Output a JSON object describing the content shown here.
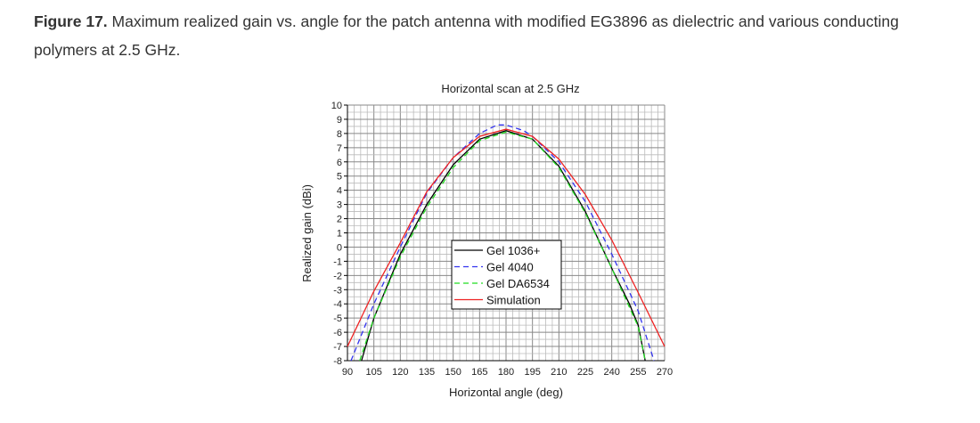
{
  "caption": {
    "label": "Figure 17.",
    "text": " Maximum realized gain vs. angle for the patch antenna with modified EG3896 as dielectric and various conducting polymers at 2.5 GHz."
  },
  "chart_data": {
    "type": "line",
    "title": "Horizontal scan at 2.5 GHz",
    "xlabel": "Horizontal angle (deg)",
    "ylabel": "Realized gain (dBi)",
    "xlim": [
      90,
      270
    ],
    "ylim": [
      -8,
      10
    ],
    "xticks": [
      90,
      105,
      120,
      135,
      150,
      165,
      180,
      195,
      210,
      225,
      240,
      255,
      270
    ],
    "yticks": [
      -8,
      -7,
      -6,
      -5,
      -4,
      -3,
      -2,
      -1,
      0,
      1,
      2,
      3,
      4,
      5,
      6,
      7,
      8,
      9,
      10
    ],
    "grid": true,
    "legend_position": "center",
    "series": [
      {
        "name": "Gel 1036+",
        "color": "#000000",
        "dash": "",
        "x": [
          98,
          105,
          120,
          135,
          150,
          165,
          180,
          195,
          210,
          225,
          240,
          250,
          255,
          259
        ],
        "y": [
          -8,
          -5,
          -0.5,
          3,
          5.8,
          7.6,
          8.2,
          7.6,
          5.7,
          2.5,
          -1.5,
          -4,
          -5.5,
          -8
        ]
      },
      {
        "name": "Gel 4040",
        "color": "#3333ee",
        "dash": "6 4",
        "x": [
          92,
          105,
          120,
          135,
          150,
          165,
          175,
          180,
          190,
          195,
          210,
          225,
          240,
          255,
          264
        ],
        "y": [
          -8,
          -4,
          0,
          3.8,
          6.3,
          8.0,
          8.6,
          8.6,
          8.2,
          7.8,
          6,
          3.2,
          -0.5,
          -4.5,
          -8
        ]
      },
      {
        "name": "Gel DA6534",
        "color": "#22dd22",
        "dash": "6 4",
        "x": [
          97,
          105,
          120,
          135,
          150,
          165,
          180,
          195,
          210,
          225,
          240,
          255,
          259
        ],
        "y": [
          -8,
          -5,
          -0.7,
          2.8,
          5.6,
          7.5,
          8.1,
          7.6,
          5.6,
          2.4,
          -1.5,
          -5.6,
          -8
        ]
      },
      {
        "name": "Simulation",
        "color": "#ee2222",
        "dash": "",
        "x": [
          90,
          105,
          120,
          135,
          150,
          165,
          180,
          195,
          210,
          225,
          240,
          255,
          270
        ],
        "y": [
          -7,
          -3.1,
          0.3,
          3.9,
          6.3,
          7.8,
          8.3,
          7.8,
          6.2,
          3.7,
          0.5,
          -3.2,
          -7
        ]
      }
    ]
  }
}
